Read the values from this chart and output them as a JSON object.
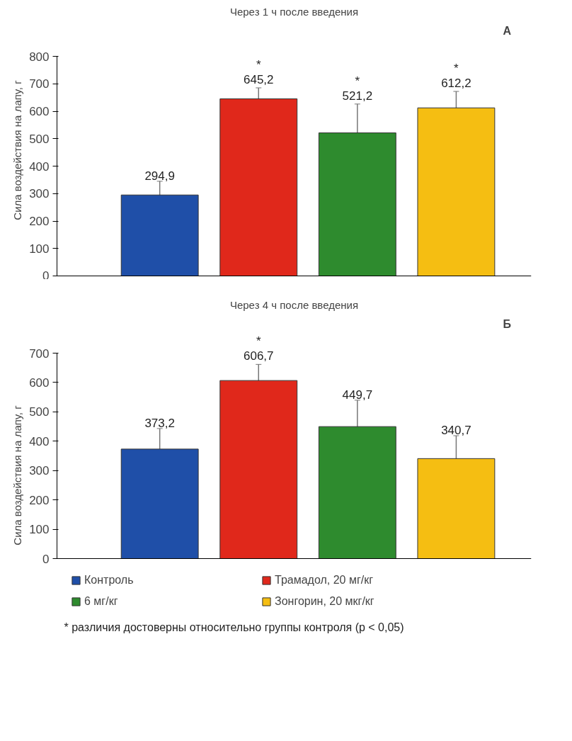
{
  "chart_data": [
    {
      "type": "bar",
      "title": "Через 1 ч после введения",
      "ylabel": "Сила воздействия на лапу, г",
      "categories": [
        null
      ],
      "series": [
        {
          "color": "#1f4fa8",
          "values": [
            294.9
          ],
          "errors": [
            50
          ],
          "value_labels": [
            "294,9"
          ]
        },
        {
          "color": "#e0281b",
          "values": [
            645.2
          ],
          "errors": [
            40
          ],
          "value_labels": [
            "*\n645,2"
          ]
        },
        {
          "color": "#2e8b2e",
          "values": [
            521.2
          ],
          "errors": [
            105
          ],
          "value_labels": [
            "*\n521,2"
          ]
        },
        {
          "color": "#f5be12",
          "values": [
            612.2
          ],
          "errors": [
            60
          ],
          "value_labels": [
            "*\n612,2"
          ]
        }
      ],
      "ylim": [
        0,
        800
      ],
      "yticks": [
        0,
        100,
        200,
        300,
        400,
        500,
        600,
        700,
        800
      ],
      "grid": false,
      "legend": false,
      "annotations": [
        "А"
      ]
    },
    {
      "type": "bar",
      "title": "Через 4 ч после введения",
      "ylabel": "Сила воздействия на лапу, г",
      "categories": [
        null
      ],
      "series": [
        {
          "name": "Контроль",
          "color": "#1f4fa8",
          "values": [
            373.2
          ],
          "errors": [
            70
          ],
          "value_labels": [
            "373,2"
          ]
        },
        {
          "name": "Трамадол, 20 мг/кг",
          "color": "#e0281b",
          "values": [
            606.7
          ],
          "errors": [
            55
          ],
          "value_labels": [
            "*\n606,7"
          ]
        },
        {
          "name": "6 мг/кг",
          "color": "#2e8b2e",
          "values": [
            449.7
          ],
          "errors": [
            90
          ],
          "value_labels": [
            "449,7"
          ]
        },
        {
          "name": "Зонгорин, 20 мкг/кг",
          "color": "#f5be12",
          "values": [
            340.7
          ],
          "errors": [
            78
          ],
          "value_labels": [
            "340,7"
          ]
        }
      ],
      "ylim": [
        0,
        700
      ],
      "yticks": [
        0,
        100,
        200,
        300,
        400,
        500,
        600,
        700
      ],
      "grid": false,
      "legend": "bottom",
      "annotations": [
        "Б",
        "* различия достоверны относительно группы контроля (p < 0,05)"
      ]
    }
  ]
}
